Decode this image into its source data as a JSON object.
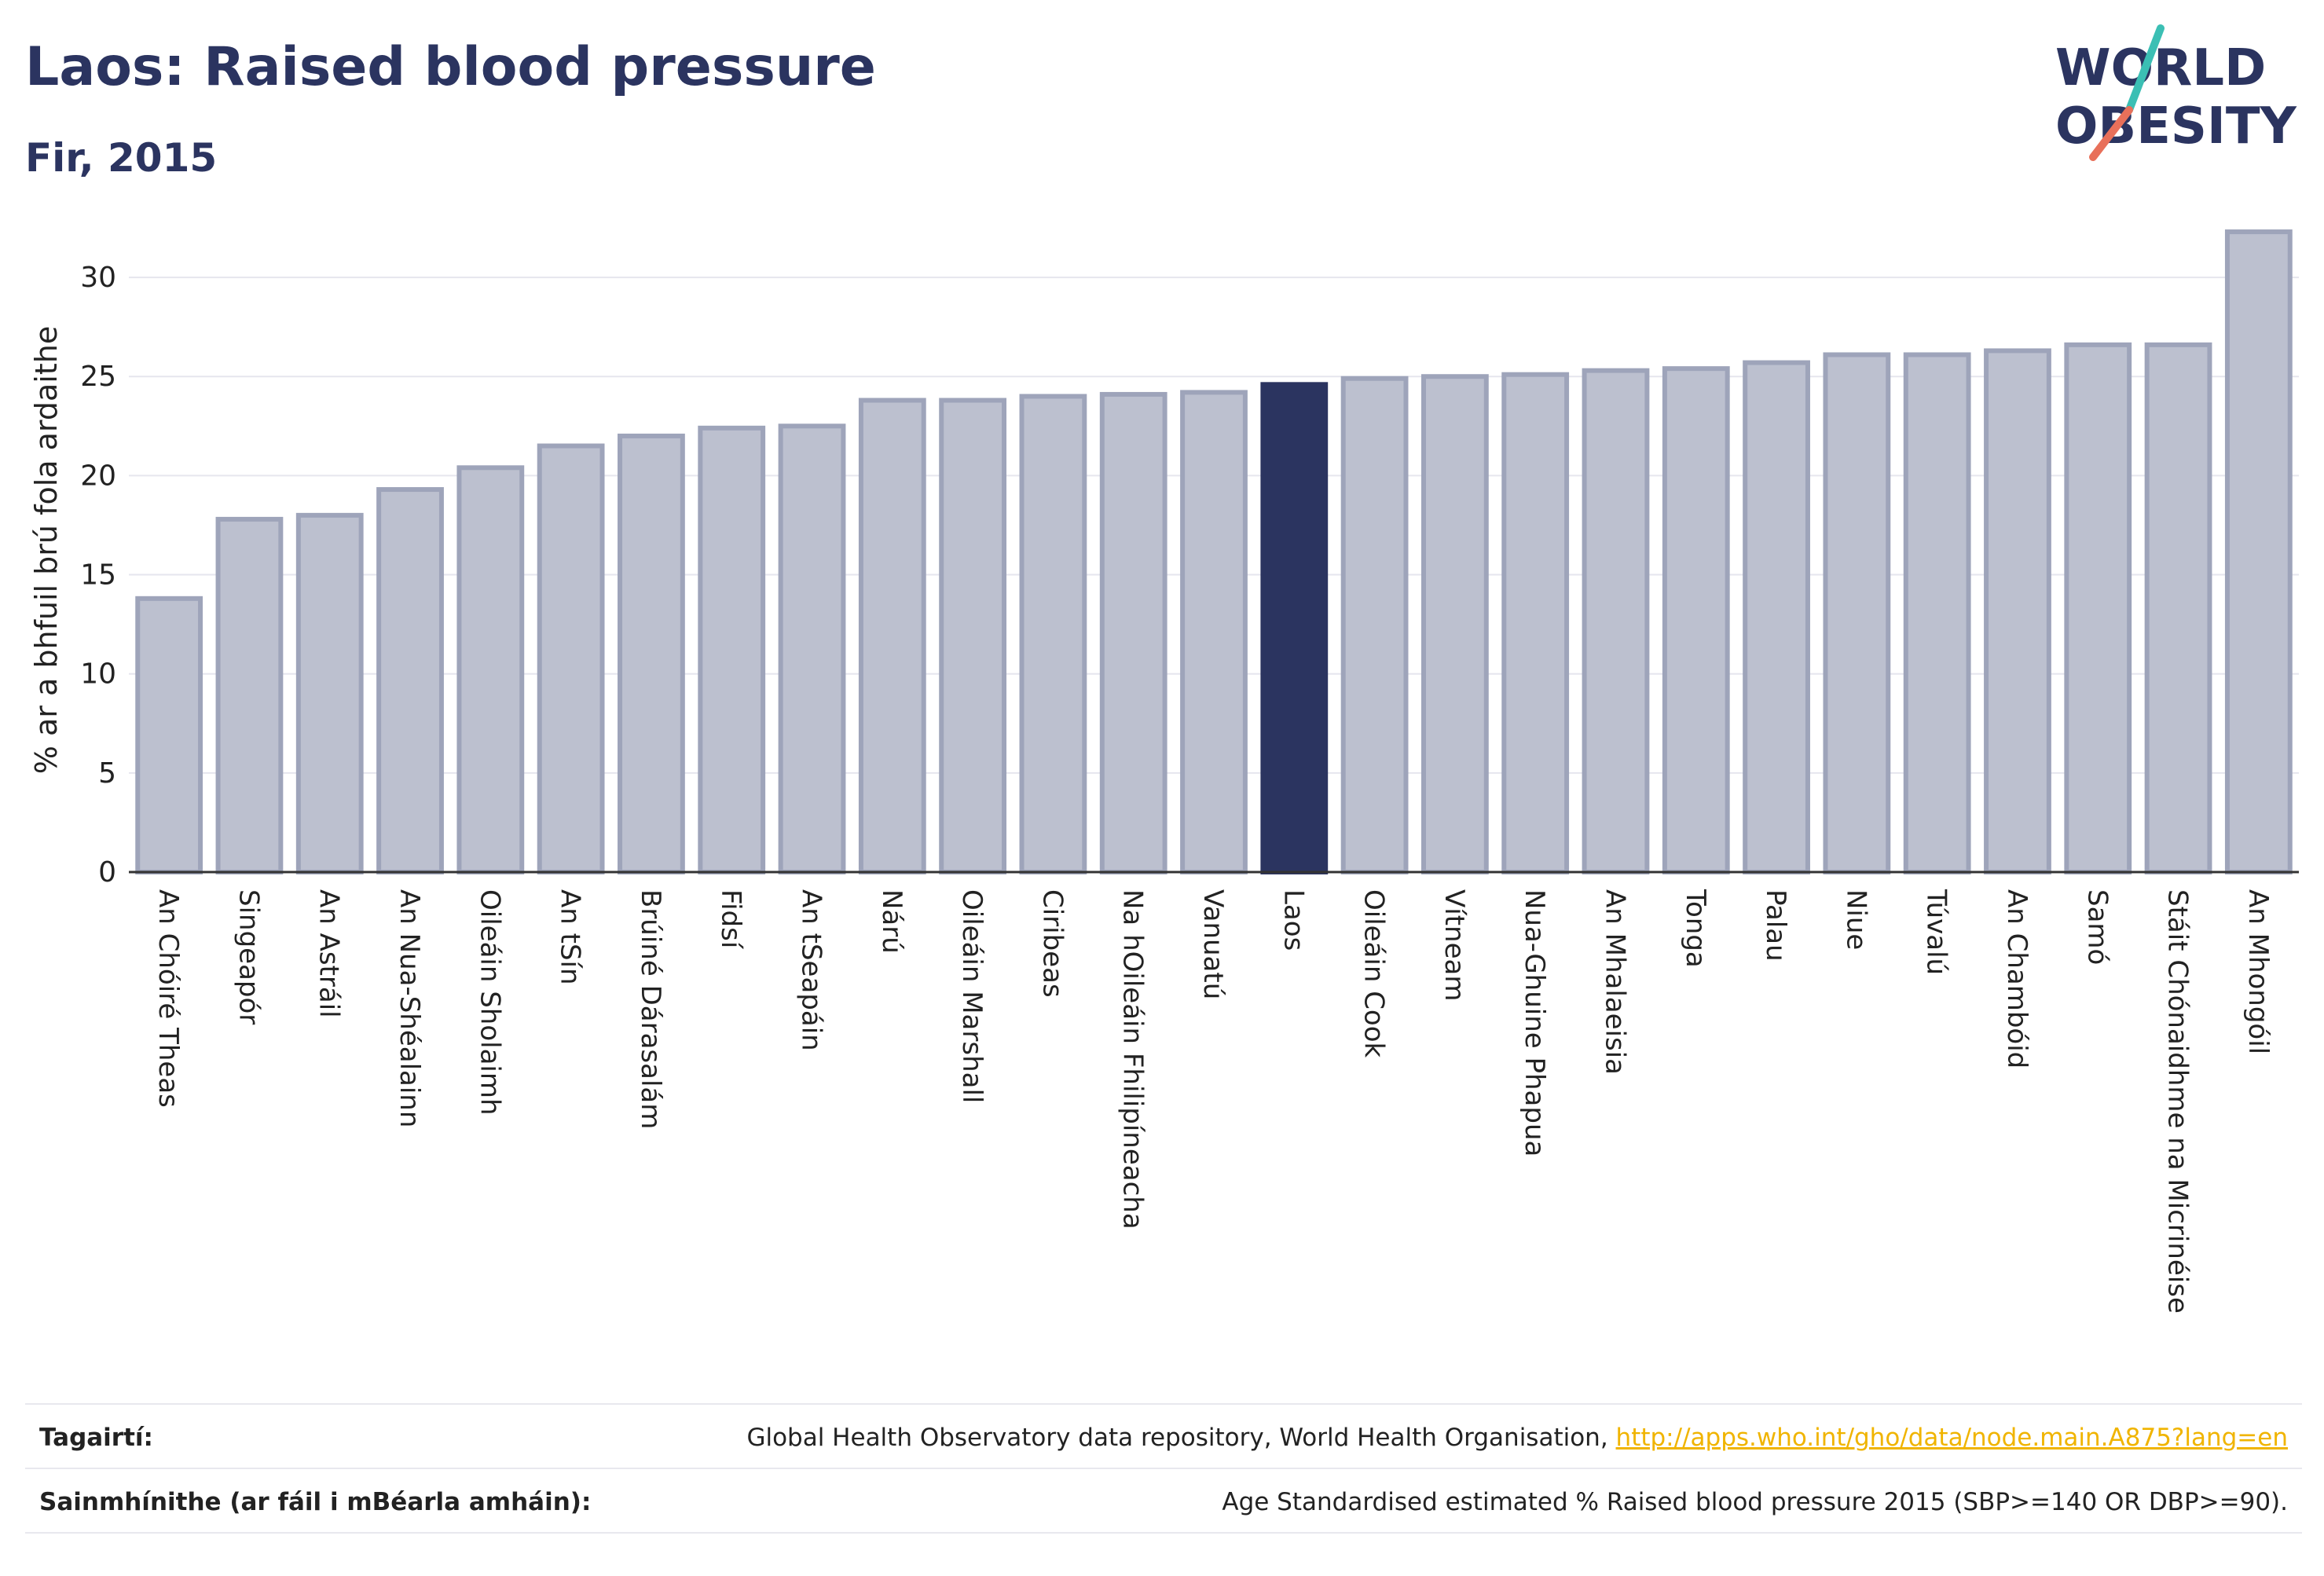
{
  "header": {
    "title": "Laos: Raised blood pressure",
    "subtitle": "Fir, 2015"
  },
  "logo": {
    "line1": "WORLD",
    "line2": "OBESITY",
    "slash_color_top": "#3bbfb4",
    "slash_color_bottom": "#e8705a"
  },
  "colors": {
    "bar_default": "#bcc0cf",
    "bar_border": "#9ea4ba",
    "bar_highlight": "#2b3460",
    "grid": "#e6e6ee",
    "text_dark": "#2b3460",
    "link": "#f0b400"
  },
  "chart_data": {
    "type": "bar",
    "title": "Laos: Raised blood pressure",
    "subtitle": "Fir, 2015",
    "xlabel": "",
    "ylabel": "% ar a bhfuil brú fola ardaithe",
    "ylim": [
      0,
      32.5
    ],
    "yticks": [
      "0",
      "5",
      "10",
      "15",
      "20",
      "25",
      "30"
    ],
    "grid": true,
    "highlight": "Laos",
    "categories": [
      "An Chóiré Theas",
      "Singeapór",
      "An Astráil",
      "An Nua-Shéalainn",
      "Oileáin Sholaimh",
      "An tSín",
      "Brúiné Dárasalám",
      "Fidsí",
      "An tSeapáin",
      "Nárú",
      "Oileáin Marshall",
      "Ciribeas",
      "Na hOileáin Fhilipíneacha",
      "Vanuatú",
      "Laos",
      "Oileáin Cook",
      "Vítneam",
      "Nua-Ghuine Phapua",
      "An Mhalaeisia",
      "Tonga",
      "Palau",
      "Niue",
      "Túvalú",
      "An Chambóid",
      "Samó",
      "Stáit Chónaidhme na Micrinéise",
      "An Mhongóil"
    ],
    "values": [
      13.8,
      17.8,
      18.0,
      19.3,
      20.4,
      21.5,
      22.0,
      22.4,
      22.5,
      23.8,
      23.8,
      24.0,
      24.1,
      24.2,
      24.6,
      24.9,
      25.0,
      25.1,
      25.3,
      25.4,
      25.7,
      26.1,
      26.1,
      26.3,
      26.6,
      26.6,
      32.3
    ]
  },
  "footer": {
    "references_label": "Tagairtí:",
    "references_text": "Global Health Observatory data repository, World Health Organisation,",
    "references_link": "http://apps.who.int/gho/data/node.main.A875?lang=en",
    "definitions_label": "Sainmhínithe (ar fáil i mBéarla amháin):",
    "definitions_text": "Age Standardised estimated % Raised blood pressure 2015 (SBP>=140 OR DBP>=90)."
  }
}
